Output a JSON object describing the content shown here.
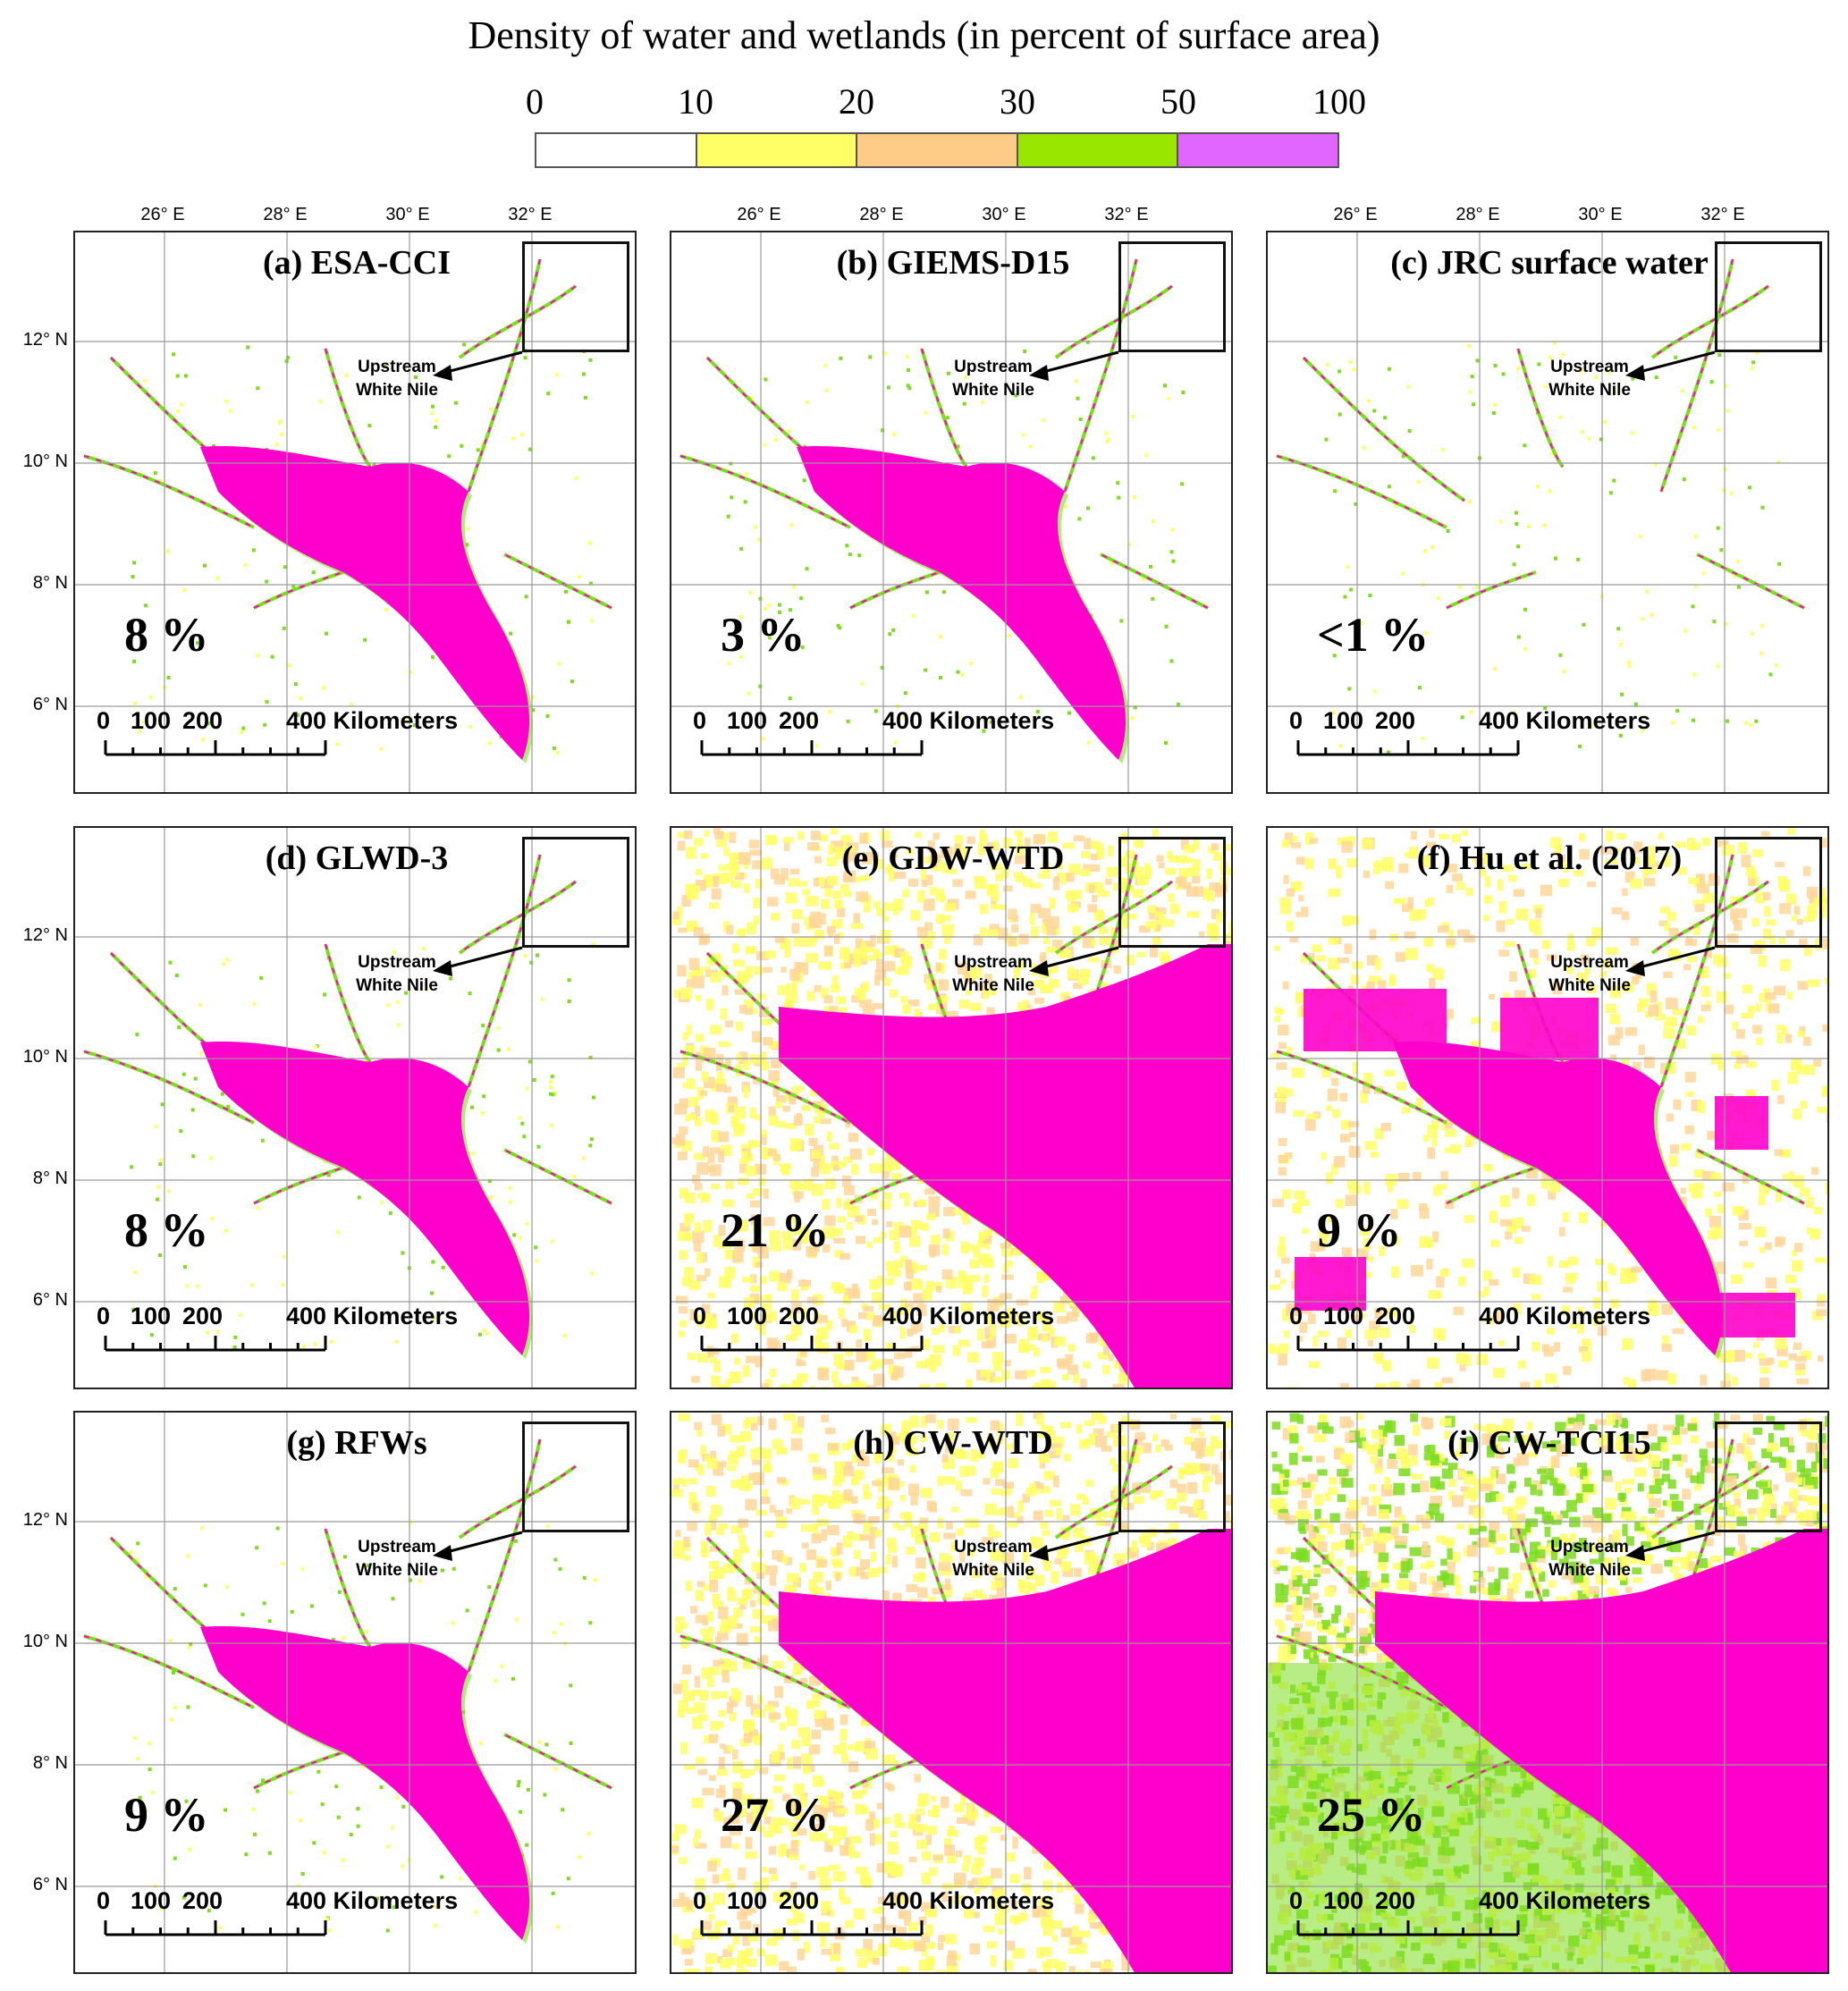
{
  "legend": {
    "title": "Density of water and wetlands (in percent of surface area)",
    "ticks": [
      "0",
      "10",
      "20",
      "30",
      "50",
      "100"
    ],
    "colors": [
      "#ffffff",
      "#ffff66",
      "#ffcc88",
      "#99e600",
      "#e066ff"
    ]
  },
  "map_colors": {
    "wetland_high": "#ff00cc",
    "wetland_mid": "#7ddc1f",
    "wetland_low": "#ffff66",
    "wetland_faint": "#ffd699",
    "grid": "#9a9a9a",
    "arrow": "#000000"
  },
  "axes": {
    "lon_labels": [
      "26° E",
      "28° E",
      "30° E",
      "32° E"
    ],
    "lat_labels": [
      "12° N",
      "10° N",
      "8° N",
      "6° N"
    ]
  },
  "annotation": {
    "callout_line1": "Upstream",
    "callout_line2": "White Nile"
  },
  "scale_bar": {
    "label_0": "0",
    "label_100": "100",
    "label_200": "200",
    "label_400": "400 Kilometers"
  },
  "panels": [
    {
      "id": "a",
      "title": "(a) ESA-CCI",
      "percent": "8 %",
      "background": "sparse"
    },
    {
      "id": "b",
      "title": "(b) GIEMS-D15",
      "percent": "3 %",
      "background": "sparse"
    },
    {
      "id": "c",
      "title": "(c) JRC surface water",
      "percent": "<1 %",
      "background": "sparse"
    },
    {
      "id": "d",
      "title": "(d) GLWD-3",
      "percent": "8 %",
      "background": "sparse"
    },
    {
      "id": "e",
      "title": "(e) GDW-WTD",
      "percent": "21 %",
      "background": "dense"
    },
    {
      "id": "f",
      "title": "(f) Hu et al. (2017)",
      "percent": "9 %",
      "background": "patchy"
    },
    {
      "id": "g",
      "title": "(g) RFWs",
      "percent": "9 %",
      "background": "sparse"
    },
    {
      "id": "h",
      "title": "(h) CW-WTD",
      "percent": "27 %",
      "background": "dense"
    },
    {
      "id": "i",
      "title": "(i) CW-TCI15",
      "percent": "25 %",
      "background": "full"
    }
  ]
}
